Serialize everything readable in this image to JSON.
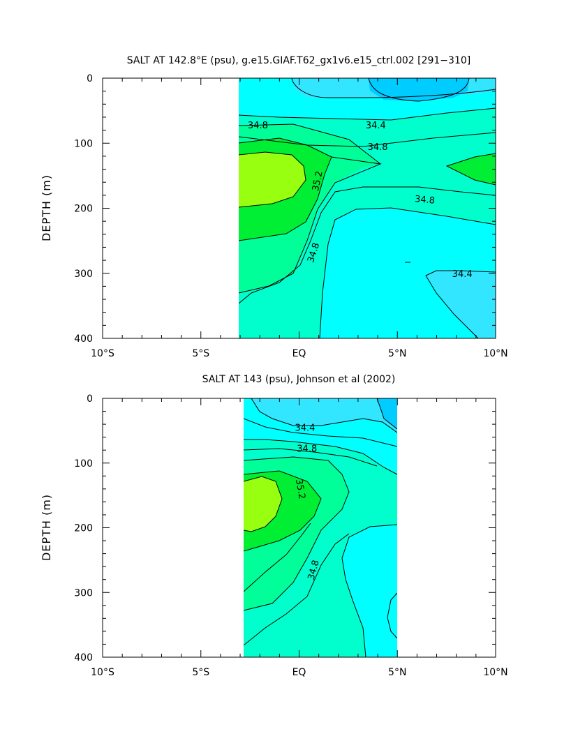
{
  "chart_data": [
    {
      "type": "heatmap",
      "subtype": "filled-contour",
      "title": "SALT AT 142.8°E (psu), g.e15.GIAF.T62_gx1v6.e15_ctrl.002 [291−310]",
      "ylabel": "DEPTH (m)",
      "xlabel": "",
      "xlim": [
        -10,
        10
      ],
      "ylim": [
        400,
        0
      ],
      "data_extent_x": [
        -3,
        10
      ],
      "data_extent_y": [
        5,
        400
      ],
      "x_ticks": [
        {
          "value": -10,
          "label": "10°S"
        },
        {
          "value": -5,
          "label": "5°S"
        },
        {
          "value": 0,
          "label": "EQ"
        },
        {
          "value": 5,
          "label": "5°N"
        },
        {
          "value": 10,
          "label": "10°N"
        }
      ],
      "y_ticks": [
        {
          "value": 0,
          "label": "0"
        },
        {
          "value": 100,
          "label": "100"
        },
        {
          "value": 200,
          "label": "200"
        },
        {
          "value": 300,
          "label": "300"
        },
        {
          "value": 400,
          "label": "400"
        }
      ],
      "contour_levels": [
        34.2,
        34.4,
        34.6,
        34.8,
        35.0,
        35.2
      ],
      "contour_labels": [
        {
          "text": "34.8",
          "x": -2.1,
          "y": 72,
          "rot": 0
        },
        {
          "text": "34.4",
          "x": 3.9,
          "y": 72,
          "rot": 0
        },
        {
          "text": "34.8",
          "x": 4.0,
          "y": 105,
          "rot": 0
        },
        {
          "text": "35.2",
          "x": 0.9,
          "y": 158,
          "rot": -78
        },
        {
          "text": "34.8",
          "x": 6.4,
          "y": 186,
          "rot": 5
        },
        {
          "text": "34.8",
          "x": 0.7,
          "y": 268,
          "rot": -72
        },
        {
          "text": "34.4",
          "x": 8.3,
          "y": 300,
          "rot": 0
        }
      ]
    },
    {
      "type": "heatmap",
      "subtype": "filled-contour",
      "title": "SALT AT 143 (psu), Johnson et al (2002)",
      "ylabel": "DEPTH (m)",
      "xlabel": "",
      "xlim": [
        -10,
        10
      ],
      "ylim": [
        400,
        0
      ],
      "data_extent_x": [
        -2.8,
        5
      ],
      "data_extent_y": [
        5,
        400
      ],
      "x_ticks": [
        {
          "value": -10,
          "label": "10°S"
        },
        {
          "value": -5,
          "label": "5°S"
        },
        {
          "value": 0,
          "label": "EQ"
        },
        {
          "value": 5,
          "label": "5°N"
        },
        {
          "value": 10,
          "label": "10°N"
        }
      ],
      "y_ticks": [
        {
          "value": 0,
          "label": "0"
        },
        {
          "value": 100,
          "label": "100"
        },
        {
          "value": 200,
          "label": "200"
        },
        {
          "value": 300,
          "label": "300"
        },
        {
          "value": 400,
          "label": "400"
        }
      ],
      "contour_levels": [
        34.2,
        34.4,
        34.6,
        34.8,
        35.0,
        35.2
      ],
      "contour_labels": [
        {
          "text": "34.4",
          "x": 0.3,
          "y": 45,
          "rot": 0
        },
        {
          "text": "34.8",
          "x": 0.4,
          "y": 77,
          "rot": 0
        },
        {
          "text": "35.2",
          "x": 0.1,
          "y": 140,
          "rot": 80
        },
        {
          "text": "34.8",
          "x": 0.7,
          "y": 265,
          "rot": -75
        }
      ]
    }
  ],
  "colors": {
    "s34_2": "#33e6ff",
    "s34_4": "#00ffff",
    "s34_6": "#00ffcc",
    "s34_8": "#00ff99",
    "s35_0": "#00ee33",
    "s35_2": "#99ff11",
    "surface_low": "#00ccff"
  }
}
